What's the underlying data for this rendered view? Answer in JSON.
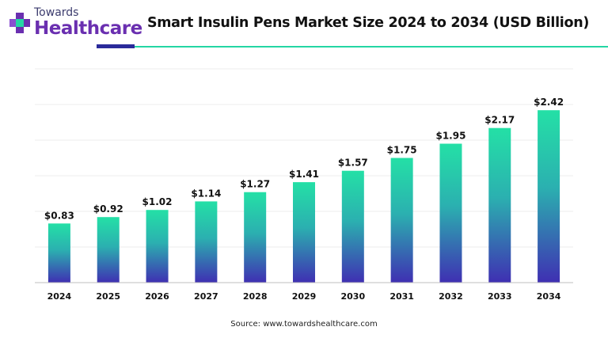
{
  "header": {
    "logo_top": "Towards",
    "logo_bottom": "Healthcare",
    "title": "Smart Insulin Pens Market Size 2024 to 2034 (USD Billion)"
  },
  "footer": {
    "source": "Source: www.towardshealthcare.com"
  },
  "colors": {
    "bar_top": "#24e0a6",
    "bar_bottom": "#3f2fb2",
    "accent_dark": "#2a2a9a",
    "accent_green": "#24d6a4",
    "logo_purple": "#6a2fb0"
  },
  "chart_data": {
    "type": "bar",
    "categories": [
      "2024",
      "2025",
      "2026",
      "2027",
      "2028",
      "2029",
      "2030",
      "2031",
      "2032",
      "2033",
      "2034"
    ],
    "values": [
      0.83,
      0.92,
      1.02,
      1.14,
      1.27,
      1.41,
      1.57,
      1.75,
      1.95,
      2.17,
      2.42
    ],
    "value_labels": [
      "$0.83",
      "$0.92",
      "$1.02",
      "$1.14",
      "$1.27",
      "$1.41",
      "$1.57",
      "$1.75",
      "$1.95",
      "$2.17",
      "$2.42"
    ],
    "ylim": [
      0,
      3
    ],
    "grid": true,
    "legend": "none"
  }
}
